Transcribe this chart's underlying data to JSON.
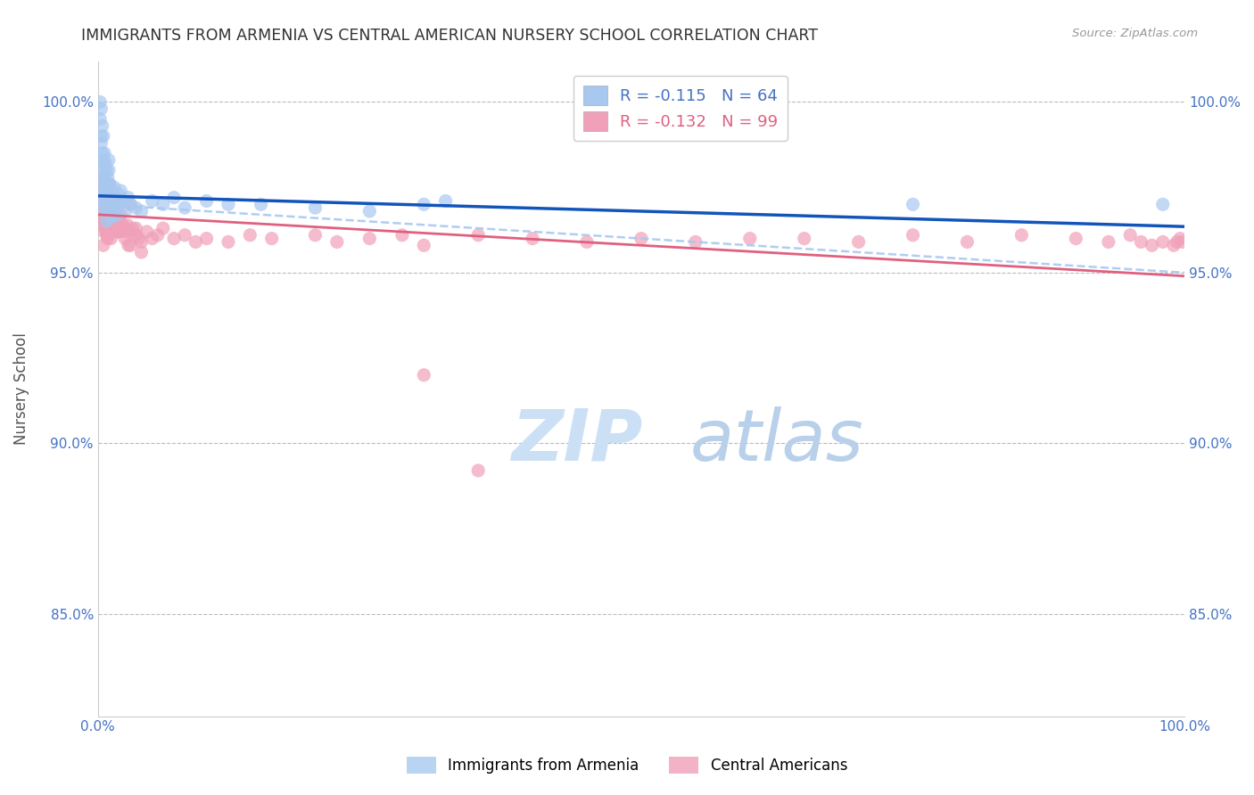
{
  "title": "IMMIGRANTS FROM ARMENIA VS CENTRAL AMERICAN NURSERY SCHOOL CORRELATION CHART",
  "source": "Source: ZipAtlas.com",
  "ylabel": "Nursery School",
  "armenia_R": -0.115,
  "armenia_N": 64,
  "central_R": -0.132,
  "central_N": 99,
  "xlim": [
    0.0,
    1.0
  ],
  "ylim": [
    0.82,
    1.012
  ],
  "yticks": [
    0.85,
    0.9,
    0.95,
    1.0
  ],
  "background_color": "#ffffff",
  "grid_color": "#bbbbbb",
  "title_color": "#333333",
  "axis_label_color": "#555555",
  "tick_color": "#4472c4",
  "watermark_zip": "ZIP",
  "watermark_atlas": "atlas",
  "watermark_color_zip": "#c8ddf0",
  "watermark_color_atlas": "#b0c8e8",
  "armenia_color": "#a8c8f0",
  "central_color": "#f0a0b8",
  "armenia_line_color": "#1155bb",
  "central_line_color": "#e06080",
  "dashed_line_color": "#a8c8f0",
  "armenia_scatter_x": [
    0.002,
    0.002,
    0.003,
    0.003,
    0.003,
    0.004,
    0.004,
    0.004,
    0.005,
    0.005,
    0.005,
    0.005,
    0.006,
    0.006,
    0.006,
    0.007,
    0.007,
    0.008,
    0.008,
    0.008,
    0.009,
    0.009,
    0.01,
    0.01,
    0.01,
    0.011,
    0.011,
    0.012,
    0.012,
    0.013,
    0.014,
    0.015,
    0.015,
    0.016,
    0.017,
    0.018,
    0.019,
    0.02,
    0.021,
    0.022,
    0.025,
    0.028,
    0.03,
    0.035,
    0.04,
    0.05,
    0.06,
    0.07,
    0.08,
    0.1,
    0.12,
    0.15,
    0.2,
    0.25,
    0.3,
    0.32,
    0.01,
    0.008,
    0.006,
    0.005,
    0.004,
    0.003,
    0.75,
    0.98
  ],
  "armenia_scatter_y": [
    1.0,
    0.995,
    0.998,
    0.988,
    0.975,
    0.993,
    0.982,
    0.972,
    0.99,
    0.983,
    0.976,
    0.968,
    0.985,
    0.978,
    0.97,
    0.982,
    0.974,
    0.98,
    0.973,
    0.965,
    0.978,
    0.97,
    0.983,
    0.976,
    0.968,
    0.976,
    0.968,
    0.974,
    0.966,
    0.972,
    0.97,
    0.975,
    0.967,
    0.972,
    0.969,
    0.967,
    0.973,
    0.971,
    0.974,
    0.971,
    0.968,
    0.972,
    0.97,
    0.969,
    0.968,
    0.971,
    0.97,
    0.972,
    0.969,
    0.971,
    0.97,
    0.97,
    0.969,
    0.968,
    0.97,
    0.971,
    0.98,
    0.975,
    0.977,
    0.98,
    0.985,
    0.99,
    0.97,
    0.97
  ],
  "central_scatter_x": [
    0.002,
    0.003,
    0.003,
    0.004,
    0.004,
    0.005,
    0.005,
    0.005,
    0.006,
    0.006,
    0.007,
    0.007,
    0.008,
    0.008,
    0.009,
    0.009,
    0.01,
    0.01,
    0.011,
    0.011,
    0.012,
    0.012,
    0.013,
    0.014,
    0.015,
    0.015,
    0.016,
    0.017,
    0.018,
    0.019,
    0.02,
    0.021,
    0.022,
    0.023,
    0.025,
    0.027,
    0.03,
    0.032,
    0.035,
    0.038,
    0.04,
    0.045,
    0.05,
    0.055,
    0.06,
    0.07,
    0.08,
    0.09,
    0.1,
    0.12,
    0.14,
    0.16,
    0.2,
    0.22,
    0.25,
    0.28,
    0.3,
    0.35,
    0.4,
    0.45,
    0.5,
    0.55,
    0.6,
    0.65,
    0.7,
    0.75,
    0.8,
    0.85,
    0.9,
    0.93,
    0.95,
    0.96,
    0.97,
    0.98,
    0.99,
    0.993,
    0.996,
    0.998,
    0.003,
    0.004,
    0.005,
    0.006,
    0.007,
    0.008,
    0.009,
    0.01,
    0.012,
    0.015,
    0.018,
    0.025,
    0.03,
    0.04,
    0.3,
    0.35,
    0.03,
    0.035,
    0.02,
    0.025,
    0.028
  ],
  "central_scatter_y": [
    0.978,
    0.976,
    0.966,
    0.974,
    0.964,
    0.973,
    0.966,
    0.958,
    0.97,
    0.962,
    0.973,
    0.963,
    0.97,
    0.961,
    0.968,
    0.96,
    0.976,
    0.966,
    0.972,
    0.963,
    0.968,
    0.96,
    0.966,
    0.964,
    0.972,
    0.963,
    0.966,
    0.962,
    0.964,
    0.97,
    0.962,
    0.967,
    0.963,
    0.964,
    0.963,
    0.964,
    0.962,
    0.963,
    0.961,
    0.96,
    0.959,
    0.962,
    0.96,
    0.961,
    0.963,
    0.96,
    0.961,
    0.959,
    0.96,
    0.959,
    0.961,
    0.96,
    0.961,
    0.959,
    0.96,
    0.961,
    0.958,
    0.961,
    0.96,
    0.959,
    0.96,
    0.959,
    0.96,
    0.96,
    0.959,
    0.961,
    0.959,
    0.961,
    0.96,
    0.959,
    0.961,
    0.959,
    0.958,
    0.959,
    0.958,
    0.959,
    0.96,
    0.959,
    0.975,
    0.968,
    0.97,
    0.965,
    0.967,
    0.963,
    0.962,
    0.968,
    0.963,
    0.965,
    0.962,
    0.96,
    0.958,
    0.956,
    0.92,
    0.892,
    0.97,
    0.963,
    0.965,
    0.962,
    0.958
  ]
}
